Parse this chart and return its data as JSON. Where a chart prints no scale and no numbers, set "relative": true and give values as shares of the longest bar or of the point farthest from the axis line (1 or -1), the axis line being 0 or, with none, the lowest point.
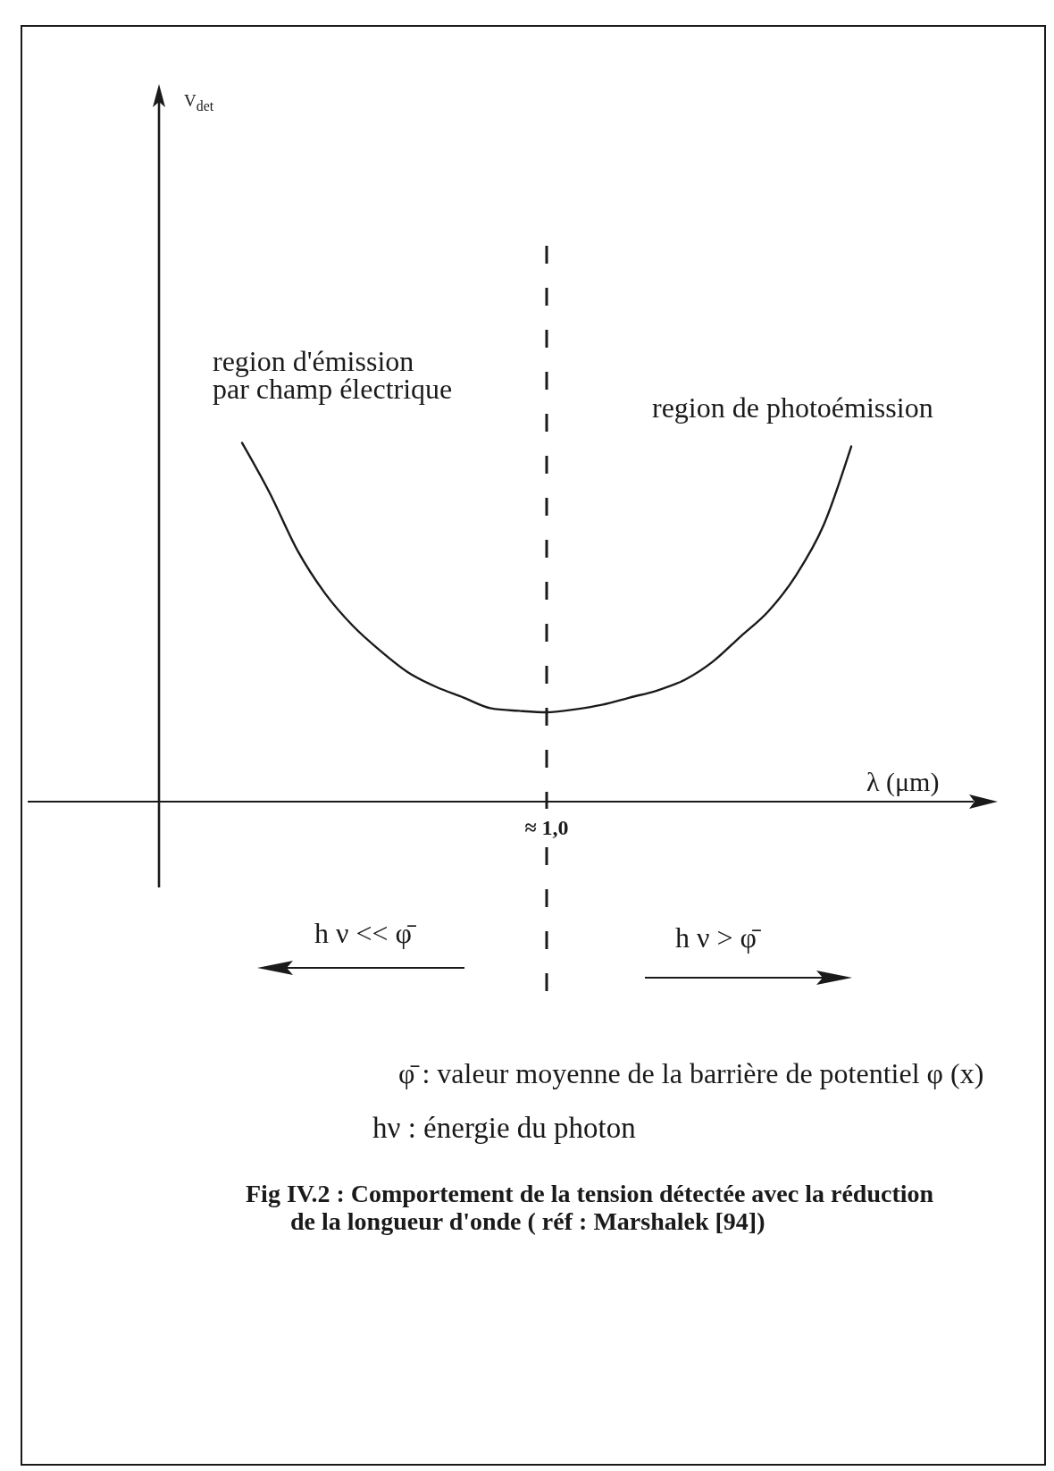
{
  "chart_data": {
    "type": "line",
    "title": "Fig IV.2 : Comportement de la tension détectée avec la réduction\nde la longueur d'onde ( réf : Marshalek [94])",
    "xlabel": "λ (μm)",
    "categories": [
      null,
      null,
      null,
      null,
      null,
      null,
      null,
      null,
      null,
      null,
      null,
      null,
      null,
      null,
      null,
      null,
      null,
      null,
      null,
      null,
      null,
      null,
      null,
      null,
      null,
      null,
      null,
      null,
      null,
      null
    ],
    "series": [
      {
        "color": "#1a1a1a",
        "values": [
          null,
          null,
          null,
          1.0,
          0.86,
          0.7,
          0.58,
          0.49,
          0.42,
          0.36,
          0.32,
          0.29,
          0.26,
          0.253,
          0.249,
          0.257,
          0.27,
          0.29,
          0.31,
          0.34,
          0.39,
          0.46,
          0.53,
          0.63,
          0.77,
          0.99,
          null,
          null,
          null,
          null
        ]
      }
    ],
    "relative": true,
    "marker": "none",
    "ref_lines": [
      {
        "axis": "x",
        "value": "≈ 1,0",
        "color": "#1a1a1a",
        "line_style": "dashed"
      }
    ],
    "annotations": [
      "V$_{det}$",
      "region d'émission\npar champ électrique",
      "region de photoémission",
      "h ν << φ̄",
      "h ν > φ̄",
      "φ̄ : valeur moyenne de la barrière de potentiel φ (x)",
      "hν : énergie du photon"
    ]
  }
}
